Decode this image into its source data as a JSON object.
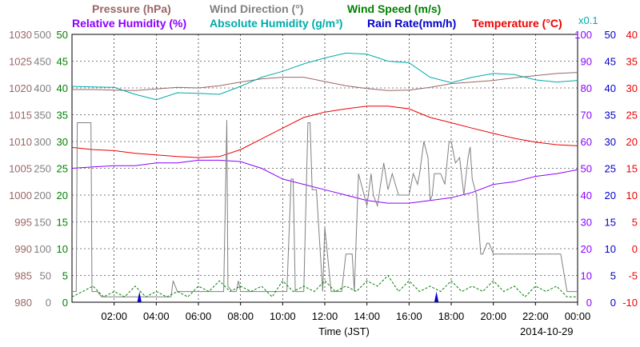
{
  "legend": {
    "row1": [
      {
        "text": "Pressure (hPa)",
        "color": "#996666"
      },
      {
        "text": "Wind Direction (°)",
        "color": "#808080"
      },
      {
        "text": "Wind Speed (m/s)",
        "color": "#008000"
      }
    ],
    "row2": [
      {
        "text": "Relative Humidity (%)",
        "color": "#8b00ff"
      },
      {
        "text": "Absolute Humidity (g/m³)",
        "color": "#00aaaa"
      },
      {
        "text": "Rain Rate(mm/h)",
        "color": "#0000cc"
      },
      {
        "text": "Temperature (°C)",
        "color": "#ee0000"
      }
    ],
    "abs_humidity_scale": "x0.1"
  },
  "xlabel": "Time (JST)",
  "date": "2014-10-29",
  "chart_data": {
    "type": "line",
    "x_unit": "hours",
    "xlim": [
      0,
      24
    ],
    "x_ticks": [
      "02:00",
      "04:00",
      "06:00",
      "08:00",
      "10:00",
      "12:00",
      "14:00",
      "16:00",
      "18:00",
      "20:00",
      "22:00",
      "00:00"
    ],
    "grid": true,
    "axes": {
      "pressure": {
        "ticks": [
          "980",
          "985",
          "990",
          "995",
          "1000",
          "1005",
          "1010",
          "1015",
          "1020",
          "1025",
          "1030"
        ],
        "range": [
          980,
          1030
        ],
        "color": "#996666"
      },
      "wind_direction": {
        "ticks": [
          "0",
          "50",
          "100",
          "150",
          "200",
          "250",
          "300",
          "350",
          "400",
          "450",
          "500"
        ],
        "range": [
          0,
          500
        ],
        "color": "#808080"
      },
      "wind_speed": {
        "ticks": [
          "0",
          "5",
          "10",
          "15",
          "20",
          "25",
          "30",
          "35",
          "40",
          "45",
          "50"
        ],
        "range": [
          0,
          50
        ],
        "color": "#008000"
      },
      "humidity": {
        "ticks": [
          "0",
          "10",
          "20",
          "30",
          "40",
          "50",
          "60",
          "70",
          "80",
          "90",
          "100"
        ],
        "range": [
          0,
          100
        ],
        "color": "#8b00ff"
      },
      "rain_rate": {
        "ticks": [
          "0",
          "5",
          "10",
          "15",
          "20",
          "25",
          "30",
          "35",
          "40",
          "45",
          "50"
        ],
        "range": [
          0,
          50
        ],
        "color": "#0000cc"
      },
      "temperature": {
        "ticks": [
          "-10",
          "-5",
          "0",
          "5",
          "10",
          "15",
          "20",
          "25",
          "30",
          "35",
          "40"
        ],
        "range": [
          -10,
          40
        ],
        "color": "#ee0000"
      }
    },
    "series": [
      {
        "name": "Pressure (hPa)",
        "axis": "pressure",
        "color": "#996666",
        "x": [
          0,
          1,
          2,
          3,
          4,
          5,
          6,
          7,
          8,
          9,
          10,
          11,
          12,
          13,
          14,
          15,
          16,
          17,
          18,
          19,
          20,
          21,
          22,
          23,
          24
        ],
        "y": [
          1019.7,
          1019.7,
          1019.6,
          1019.5,
          1019.8,
          1020.1,
          1020.0,
          1020.4,
          1021.1,
          1021.7,
          1022.0,
          1022.0,
          1021.2,
          1020.4,
          1019.9,
          1019.5,
          1019.6,
          1020.1,
          1020.8,
          1021.1,
          1021.4,
          1021.9,
          1022.3,
          1022.7,
          1022.9
        ]
      },
      {
        "name": "Absolute Humidity (g/m³)",
        "axis": "wind_speed",
        "color": "#00aaaa",
        "x": [
          0,
          1,
          2,
          3,
          4,
          5,
          6,
          7,
          8,
          9,
          10,
          11,
          12,
          13,
          14,
          15,
          16,
          17,
          18,
          19,
          20,
          21,
          22,
          23,
          24
        ],
        "y": [
          40.3,
          40.2,
          40.1,
          38.8,
          37.8,
          39.1,
          39.0,
          38.8,
          40.3,
          42.0,
          43.1,
          44.5,
          45.6,
          46.5,
          46.3,
          45.0,
          44.7,
          42.0,
          41.0,
          42.0,
          42.7,
          42.5,
          41.5,
          41.1,
          41.4
        ]
      },
      {
        "name": "Temperature (°C)",
        "axis": "temperature",
        "color": "#ee0000",
        "x": [
          0,
          1,
          2,
          3,
          4,
          5,
          6,
          7,
          8,
          9,
          10,
          11,
          12,
          13,
          14,
          15,
          16,
          17,
          18,
          19,
          20,
          21,
          22,
          23,
          24
        ],
        "y": [
          18.9,
          18.5,
          18.3,
          17.8,
          17.5,
          17.2,
          17.0,
          17.2,
          18.5,
          20.5,
          22.5,
          24.5,
          25.5,
          26.1,
          26.6,
          26.6,
          26.1,
          24.5,
          23.5,
          22.5,
          21.5,
          20.6,
          19.9,
          19.4,
          19.2
        ]
      },
      {
        "name": "Relative Humidity (%)",
        "axis": "humidity",
        "color": "#8b00ff",
        "x": [
          0,
          1,
          2,
          3,
          4,
          5,
          6,
          7,
          8,
          9,
          10,
          11,
          12,
          13,
          14,
          15,
          16,
          17,
          18,
          19,
          20,
          21,
          22,
          23,
          24
        ],
        "y": [
          50,
          50.5,
          51,
          51,
          52,
          52,
          53,
          53,
          52.5,
          50,
          46,
          44,
          42,
          40,
          38,
          37,
          37,
          38,
          39,
          41,
          44,
          45,
          47,
          48,
          49.5
        ]
      },
      {
        "name": "Wind Direction (°)",
        "axis": "wind_direction",
        "color": "#808080",
        "x": [
          0,
          0.2,
          0.25,
          0.9,
          0.95,
          1.2,
          1.4,
          1.6,
          2,
          2.5,
          3,
          3.5,
          4,
          4.5,
          4.7,
          4.8,
          5,
          6,
          7,
          7.2,
          7.35,
          7.4,
          7.6,
          7.8,
          7.9,
          8.0,
          8.3,
          9,
          9.6,
          9.7,
          9.9,
          10.0,
          10.2,
          10.4,
          10.5,
          10.6,
          10.8,
          11,
          11.2,
          11.3,
          11.4,
          11.6,
          11.9,
          12.0,
          12.3,
          12.6,
          12.8,
          13.0,
          13.3,
          13.4,
          13.6,
          13.8,
          14.0,
          14.2,
          14.3,
          14.5,
          14.8,
          15.0,
          15.2,
          15.5,
          16.0,
          16.2,
          16.4,
          16.5,
          16.7,
          16.9,
          17.0,
          17.1,
          17.2,
          17.5,
          17.7,
          17.9,
          18.0,
          18.2,
          18.4,
          18.6,
          18.8,
          18.9,
          19.0,
          19.2,
          19.4,
          19.5,
          19.7,
          19.8,
          20,
          21,
          22,
          22.5,
          23.0,
          23.2,
          23.5,
          24
        ],
        "y": [
          20,
          20,
          335,
          335,
          20,
          20,
          10,
          10,
          10,
          10,
          10,
          10,
          10,
          10,
          10,
          40,
          20,
          20,
          20,
          20,
          340,
          30,
          20,
          20,
          40,
          20,
          20,
          20,
          20,
          20,
          20,
          20,
          20,
          230,
          230,
          20,
          20,
          20,
          335,
          335,
          210,
          210,
          20,
          140,
          20,
          20,
          20,
          90,
          90,
          20,
          240,
          210,
          180,
          240,
          200,
          180,
          260,
          210,
          240,
          200,
          200,
          240,
          220,
          240,
          300,
          270,
          190,
          200,
          240,
          240,
          220,
          300,
          300,
          260,
          270,
          200,
          270,
          290,
          230,
          200,
          90,
          90,
          110,
          110,
          90,
          90,
          90,
          90,
          90,
          90,
          20,
          20
        ]
      },
      {
        "name": "Wind Speed (m/s)",
        "axis": "wind_speed",
        "color": "#008000",
        "x": [
          0,
          0.5,
          1,
          1.5,
          2,
          2.5,
          3,
          3.5,
          4,
          4.5,
          5,
          5.5,
          6,
          6.5,
          7,
          7.5,
          8,
          8.5,
          9,
          9.5,
          10,
          10.5,
          11,
          11.5,
          12,
          12.5,
          13,
          13.5,
          14,
          14.5,
          15,
          15.5,
          16,
          16.5,
          17,
          17.5,
          18,
          18.5,
          19,
          19.5,
          20,
          20.5,
          21,
          21.5,
          22,
          22.5,
          23,
          23.5,
          24
        ],
        "y": [
          1,
          2,
          3,
          1,
          2,
          1,
          3,
          1,
          2,
          1,
          2,
          1,
          3,
          2,
          4,
          2,
          3,
          2,
          3,
          1,
          4,
          2,
          3,
          2,
          4,
          2,
          3,
          2,
          4,
          3,
          5,
          2,
          4,
          2,
          3,
          2,
          4,
          2,
          3,
          2,
          4,
          2,
          3,
          1,
          3,
          2,
          3,
          1,
          1
        ]
      },
      {
        "name": "Rain Rate(mm/h)",
        "axis": "rain_rate",
        "color": "#0000cc",
        "x": [
          0,
          3.1,
          3.2,
          3.3,
          17.2,
          17.3,
          17.4,
          24
        ],
        "y": [
          0,
          0,
          2,
          0,
          0,
          2,
          0,
          0
        ]
      }
    ]
  }
}
